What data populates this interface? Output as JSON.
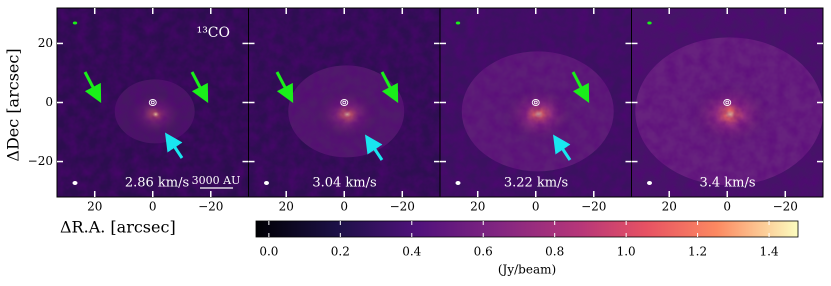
{
  "chart_data": {
    "type": "channel-maps",
    "panels": [
      {
        "label": "2.86 km/s"
      },
      {
        "label": "3.04 km/s"
      },
      {
        "label": "3.22 km/s"
      },
      {
        "label": "3.4 km/s"
      }
    ],
    "species": "¹³CO",
    "scale_bar": "3000 AU",
    "xlabel": "ΔR.A. [arcsec]",
    "ylabel": "ΔDec [arcsec]",
    "xlim": [
      33,
      -33
    ],
    "xticks": [
      20,
      0,
      {
        "value": -20,
        "label": "−20"
      }
    ],
    "ylim": [
      -32,
      32
    ],
    "yticks": [
      20,
      0,
      {
        "value": -20,
        "label": "−20"
      }
    ],
    "colorbar": {
      "label": "(Jy/beam)",
      "lim": [
        -0.036,
        1.481
      ],
      "ticks": [
        {
          "value": 0,
          "label": "0.0"
        },
        0.2,
        0.4,
        0.6,
        0.8,
        {
          "value": 1,
          "label": "1.0"
        },
        1.2,
        1.4
      ]
    }
  }
}
